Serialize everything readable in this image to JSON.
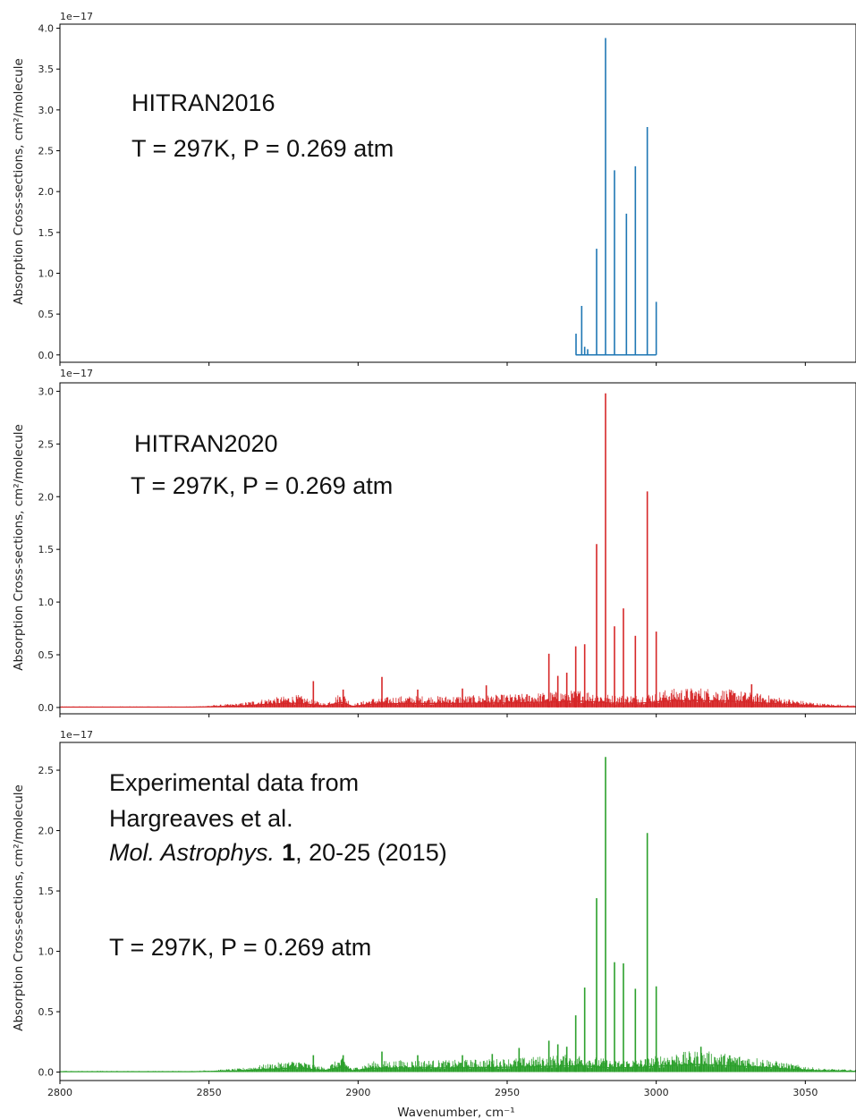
{
  "chart_data": [
    {
      "type": "line",
      "color": "#1f77b4",
      "exponent_label": "1e−17",
      "ylabel": "Absorption Cross-sections, cm²/molecule",
      "yticks": [
        "0.0",
        "0.5",
        "1.0",
        "1.5",
        "2.0",
        "2.5",
        "3.0",
        "3.5",
        "4.0"
      ],
      "ylim": [
        -0.09,
        4.05
      ],
      "xlim": [
        2800,
        3067
      ],
      "annotations": [
        "HITRAN2016",
        "T = 297K, P = 0.269 atm"
      ],
      "baseline_range": [
        2973,
        3000
      ],
      "continuum": [],
      "lines": [
        [
          2973.1,
          0.26
        ],
        [
          2975.0,
          0.6
        ],
        [
          2976.0,
          0.1
        ],
        [
          2977.0,
          0.07
        ],
        [
          2980.0,
          1.3
        ],
        [
          2983.0,
          3.88
        ],
        [
          2986.0,
          2.26
        ],
        [
          2990.0,
          1.73
        ],
        [
          2993.0,
          2.31
        ],
        [
          2997.0,
          2.79
        ],
        [
          3000.0,
          0.65
        ]
      ]
    },
    {
      "type": "line",
      "color": "#d62728",
      "exponent_label": "1e−17",
      "ylabel": "Absorption Cross-sections, cm²/molecule",
      "yticks": [
        "0.0",
        "0.5",
        "1.0",
        "1.5",
        "2.0",
        "2.5",
        "3.0"
      ],
      "ylim": [
        -0.06,
        3.08
      ],
      "xlim": [
        2800,
        3067
      ],
      "annotations": [
        "HITRAN2020",
        "T = 297K, P = 0.269 atm"
      ],
      "continuum": [
        [
          2800,
          0.01
        ],
        [
          2845,
          0.01
        ],
        [
          2860,
          0.04
        ],
        [
          2870,
          0.09
        ],
        [
          2880,
          0.12
        ],
        [
          2885,
          0.07
        ],
        [
          2889,
          0.04
        ],
        [
          2893,
          0.12
        ],
        [
          2895,
          0.14
        ],
        [
          2898,
          0.03
        ],
        [
          2905,
          0.09
        ],
        [
          2915,
          0.11
        ],
        [
          2930,
          0.11
        ],
        [
          2945,
          0.12
        ],
        [
          2955,
          0.13
        ],
        [
          2965,
          0.15
        ],
        [
          2975,
          0.17
        ],
        [
          2985,
          0.12
        ],
        [
          2995,
          0.12
        ],
        [
          3005,
          0.18
        ],
        [
          3015,
          0.19
        ],
        [
          3025,
          0.17
        ],
        [
          3035,
          0.13
        ],
        [
          3045,
          0.08
        ],
        [
          3055,
          0.04
        ],
        [
          3067,
          0.02
        ]
      ],
      "lines": [
        [
          2885,
          0.25
        ],
        [
          2895,
          0.17
        ],
        [
          2908,
          0.29
        ],
        [
          2920,
          0.17
        ],
        [
          2935,
          0.18
        ],
        [
          2943,
          0.21
        ],
        [
          2964,
          0.51
        ],
        [
          2967,
          0.3
        ],
        [
          2970,
          0.33
        ],
        [
          2973,
          0.58
        ],
        [
          2976,
          0.6
        ],
        [
          2980,
          1.55
        ],
        [
          2983,
          2.98
        ],
        [
          2986,
          0.77
        ],
        [
          2989,
          0.94
        ],
        [
          2993,
          0.68
        ],
        [
          2997,
          2.05
        ],
        [
          3000,
          0.72
        ],
        [
          3032,
          0.22
        ]
      ]
    },
    {
      "type": "line",
      "color": "#2ca02c",
      "exponent_label": "1e−17",
      "xlabel": "Wavenumber, cm⁻¹",
      "ylabel": "Absorption Cross-sections, cm²/molecule",
      "xticks": [
        "2800",
        "2850",
        "2900",
        "2950",
        "3000",
        "3050"
      ],
      "yticks": [
        "0.0",
        "0.5",
        "1.0",
        "1.5",
        "2.0",
        "2.5"
      ],
      "ylim": [
        -0.07,
        2.73
      ],
      "xlim": [
        2800,
        3067
      ],
      "annotations": [
        "Experimental data from",
        "Hargreaves et al.",
        "Mol. Astrophys.",
        "1",
        ", 20-25 (2015)",
        "T = 297K, P = 0.269 atm"
      ],
      "continuum": [
        [
          2800,
          0.01
        ],
        [
          2845,
          0.01
        ],
        [
          2860,
          0.03
        ],
        [
          2870,
          0.07
        ],
        [
          2880,
          0.1
        ],
        [
          2885,
          0.06
        ],
        [
          2889,
          0.04
        ],
        [
          2893,
          0.1
        ],
        [
          2895,
          0.12
        ],
        [
          2898,
          0.03
        ],
        [
          2905,
          0.09
        ],
        [
          2915,
          0.1
        ],
        [
          2930,
          0.1
        ],
        [
          2945,
          0.11
        ],
        [
          2955,
          0.12
        ],
        [
          2965,
          0.14
        ],
        [
          2975,
          0.15
        ],
        [
          2985,
          0.1
        ],
        [
          2995,
          0.11
        ],
        [
          3005,
          0.16
        ],
        [
          3015,
          0.18
        ],
        [
          3025,
          0.15
        ],
        [
          3035,
          0.12
        ],
        [
          3045,
          0.07
        ],
        [
          3055,
          0.03
        ],
        [
          3067,
          0.02
        ]
      ],
      "lines": [
        [
          2885,
          0.14
        ],
        [
          2895,
          0.14
        ],
        [
          2908,
          0.17
        ],
        [
          2920,
          0.14
        ],
        [
          2935,
          0.14
        ],
        [
          2945,
          0.15
        ],
        [
          2954,
          0.2
        ],
        [
          2964,
          0.26
        ],
        [
          2967,
          0.23
        ],
        [
          2970,
          0.21
        ],
        [
          2973,
          0.47
        ],
        [
          2976,
          0.7
        ],
        [
          2980,
          1.44
        ],
        [
          2983,
          2.61
        ],
        [
          2986,
          0.91
        ],
        [
          2989,
          0.9
        ],
        [
          2993,
          0.69
        ],
        [
          2997,
          1.98
        ],
        [
          3000,
          0.71
        ],
        [
          3015,
          0.21
        ]
      ]
    }
  ]
}
